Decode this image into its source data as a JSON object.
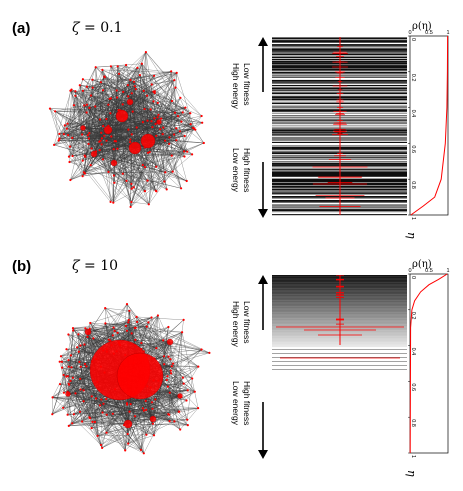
{
  "panels": [
    {
      "id": "a",
      "tag": "(a)",
      "zeta_symbol": "ζ",
      "zeta_value": "= 0.1",
      "labels_upper": [
        "Low fitness",
        "High energy"
      ],
      "labels_lower": [
        "High fitness",
        "Low energy"
      ],
      "rho_label": "ρ(η)",
      "eta_label": "η",
      "tick_labels": [
        "0",
        "0.2",
        "0.4",
        "0.6",
        "0.8",
        "1"
      ],
      "density_ticks": [
        "0",
        "0.5",
        "1"
      ],
      "density_curve": [
        [
          0.0,
          0.99
        ],
        [
          0.2,
          0.985
        ],
        [
          0.4,
          0.97
        ],
        [
          0.6,
          0.93
        ],
        [
          0.8,
          0.82
        ],
        [
          0.9,
          0.65
        ],
        [
          0.95,
          0.35
        ],
        [
          1.0,
          0.02
        ]
      ],
      "colors": {
        "network_edge": "#3a3a3a",
        "node": "#ff0000",
        "band_dark": "#0f0f0f",
        "band_light": "#ffffff",
        "curve": "#ff0000"
      }
    },
    {
      "id": "b",
      "tag": "(b)",
      "zeta_symbol": "ζ",
      "zeta_value": "= 10",
      "labels_upper": [
        "Low fitness",
        "High energy"
      ],
      "labels_lower": [
        "High fitness",
        "Low energy"
      ],
      "rho_label": "ρ(η)",
      "eta_label": "η",
      "tick_labels": [
        "0",
        "0.2",
        "0.4",
        "0.6",
        "0.8",
        "1"
      ],
      "density_ticks": [
        "0",
        "0.5",
        "1"
      ],
      "density_curve": [
        [
          0.0,
          0.98
        ],
        [
          0.03,
          0.75
        ],
        [
          0.06,
          0.5
        ],
        [
          0.1,
          0.28
        ],
        [
          0.15,
          0.12
        ],
        [
          0.2,
          0.05
        ],
        [
          0.3,
          0.015
        ],
        [
          1.0,
          0.005
        ]
      ],
      "colors": {
        "network_edge": "#3a3a3a",
        "node": "#ff0000",
        "band_dark": "#0f0f0f",
        "band_light": "#ffffff",
        "curve": "#ff0000"
      }
    }
  ]
}
